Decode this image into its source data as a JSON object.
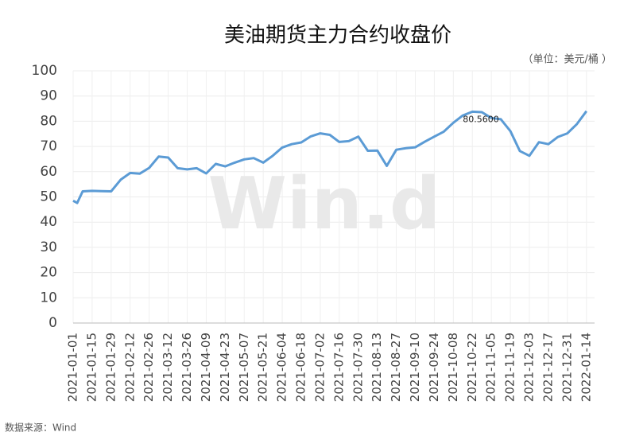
{
  "chart_data": {
    "type": "line",
    "title": "美油期货主力合约收盘价",
    "unit": "（单位：美元/桶 ）",
    "source": "数据来源：Wind",
    "watermark": "Win.d",
    "annotation": {
      "value": 80.56,
      "label": "80.5600"
    },
    "x": [
      "2021-01-01",
      "2021-01-04",
      "2021-01-08",
      "2021-01-15",
      "2021-01-22",
      "2021-01-29",
      "2021-02-05",
      "2021-02-12",
      "2021-02-19",
      "2021-02-26",
      "2021-03-05",
      "2021-03-12",
      "2021-03-19",
      "2021-03-26",
      "2021-04-02",
      "2021-04-09",
      "2021-04-16",
      "2021-04-23",
      "2021-04-30",
      "2021-05-07",
      "2021-05-14",
      "2021-05-21",
      "2021-05-28",
      "2021-06-04",
      "2021-06-11",
      "2021-06-18",
      "2021-06-25",
      "2021-07-02",
      "2021-07-09",
      "2021-07-16",
      "2021-07-23",
      "2021-07-30",
      "2021-08-06",
      "2021-08-13",
      "2021-08-20",
      "2021-08-27",
      "2021-09-03",
      "2021-09-10",
      "2021-09-17",
      "2021-09-24",
      "2021-10-01",
      "2021-10-08",
      "2021-10-15",
      "2021-10-22",
      "2021-10-29",
      "2021-11-05",
      "2021-11-12",
      "2021-11-19",
      "2021-11-26",
      "2021-12-03",
      "2021-12-10",
      "2021-12-17",
      "2021-12-24",
      "2021-12-31",
      "2022-01-07",
      "2022-01-14"
    ],
    "series": [
      {
        "name": "收盘价",
        "color": "#5b9bd5",
        "values": [
          48.5,
          47.6,
          52.2,
          52.4,
          52.3,
          52.2,
          56.8,
          59.5,
          59.2,
          61.5,
          66,
          65.6,
          61.4,
          60.9,
          61.4,
          59.3,
          63.1,
          62.1,
          63.6,
          64.9,
          65.4,
          63.6,
          66.3,
          69.6,
          70.9,
          71.6,
          74,
          75.2,
          74.6,
          71.8,
          72.1,
          73.9,
          68.3,
          68.4,
          62.3,
          68.7,
          69.3,
          69.7,
          71.9,
          73.9,
          75.9,
          79.4,
          82.3,
          83.8,
          83.6,
          81.3,
          80.8,
          76.1,
          68.2,
          66.3,
          71.7,
          70.9,
          73.8,
          75.2,
          78.9,
          84
        ]
      }
    ],
    "xlim": [
      "2021-01-01",
      "2022-01-20"
    ],
    "xticks": [
      "2021-01-01",
      "2021-01-15",
      "2021-01-29",
      "2021-02-12",
      "2021-02-26",
      "2021-03-12",
      "2021-03-26",
      "2021-04-09",
      "2021-04-23",
      "2021-05-07",
      "2021-05-21",
      "2021-06-04",
      "2021-06-18",
      "2021-07-02",
      "2021-07-16",
      "2021-07-30",
      "2021-08-13",
      "2021-08-27",
      "2021-09-10",
      "2021-09-24",
      "2021-10-08",
      "2021-10-22",
      "2021-11-05",
      "2021-11-19",
      "2021-12-03",
      "2021-12-17",
      "2021-12-31",
      "2022-01-14"
    ],
    "ylim": [
      0,
      100
    ],
    "yticks": [
      0,
      10,
      20,
      30,
      40,
      50,
      60,
      70,
      80,
      90,
      100
    ],
    "grid": true
  }
}
